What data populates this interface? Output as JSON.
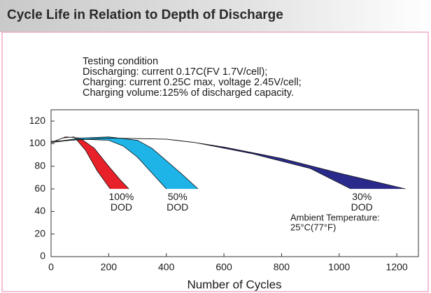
{
  "chart_data": {
    "type": "band",
    "title": "Cycle Life in Relation to Depth of Discharge",
    "notes": [
      "Testing condition",
      "Discharging: current 0.17C(FV 1.7V/cell);",
      "Charging: current 0.25C max, voltage 2.45V/cell;",
      "Charging volume:125% of discharged capacity."
    ],
    "annotation": [
      "Ambient Temperature:",
      "25°C(77°F)"
    ],
    "xlabel": "Number of Cycles",
    "xlim": [
      0,
      1275
    ],
    "ylim": [
      0,
      130
    ],
    "xticks": [
      0,
      200,
      400,
      600,
      800,
      1000,
      1200
    ],
    "yticks": [
      0,
      20,
      40,
      60,
      80,
      100,
      120
    ],
    "grid": false,
    "series": [
      {
        "name": [
          "100%",
          "DOD"
        ],
        "color": "#e8202a",
        "upper": {
          "x": [
            0,
            50,
            100,
            150,
            200,
            240,
            270
          ],
          "values": [
            101,
            106,
            105,
            96,
            80,
            68,
            60
          ]
        },
        "lower": {
          "x": [
            0,
            40,
            80,
            120,
            160,
            205
          ],
          "values": [
            101,
            105,
            106,
            94,
            76,
            60
          ]
        }
      },
      {
        "name": [
          "50%",
          "DOD"
        ],
        "color": "#1eb4e8",
        "upper": {
          "x": [
            0,
            100,
            200,
            300,
            350,
            400,
            450,
            510
          ],
          "values": [
            101,
            105,
            106,
            103,
            96,
            85,
            74,
            60
          ]
        },
        "lower": {
          "x": [
            0,
            100,
            200,
            250,
            300,
            350,
            400
          ],
          "values": [
            101,
            104,
            103,
            98,
            88,
            74,
            60
          ]
        }
      },
      {
        "name": [
          "30%",
          "DOD"
        ],
        "color": "#2a2a8c",
        "upper": {
          "x": [
            0,
            200,
            400,
            500,
            600,
            800,
            1000,
            1230
          ],
          "values": [
            102,
            105,
            104,
            101,
            97,
            87,
            74,
            60
          ]
        },
        "lower": {
          "x": [
            0,
            200,
            400,
            500,
            700,
            900,
            1040
          ],
          "values": [
            102,
            105,
            104,
            101,
            91,
            78,
            60
          ]
        }
      }
    ]
  }
}
